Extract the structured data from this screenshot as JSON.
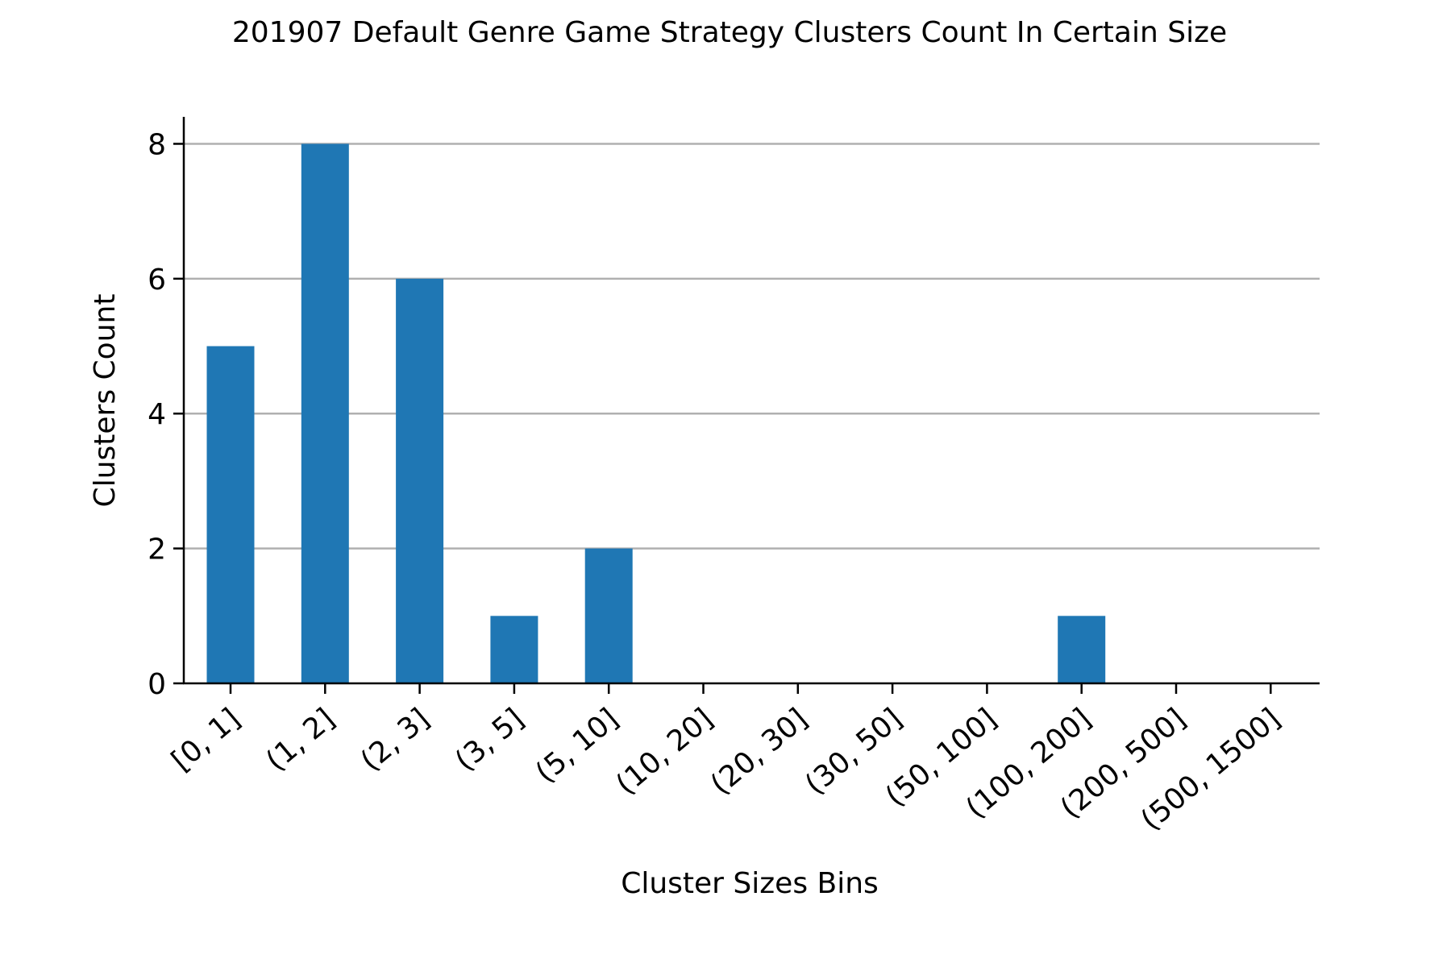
{
  "chart_data": {
    "type": "bar",
    "title": "201907 Default Genre Game Strategy Clusters Count In Certain Size",
    "xlabel": "Cluster Sizes Bins",
    "ylabel": "Clusters Count",
    "categories": [
      "[0, 1]",
      "(1, 2]",
      "(2, 3]",
      "(3, 5]",
      "(5, 10]",
      "(10, 20]",
      "(20, 30]",
      "(30, 50]",
      "(50, 100]",
      "(100, 200]",
      "(200, 500]",
      "(500, 1500]"
    ],
    "values": [
      5,
      8,
      6,
      1,
      2,
      0,
      0,
      0,
      0,
      1,
      0,
      0
    ],
    "ylim": [
      0,
      8.4
    ],
    "yticks": [
      0,
      2,
      4,
      6,
      8
    ],
    "grid": "y",
    "colors": {
      "bar": "#1f77b4",
      "grid": "#b0b0b0",
      "axis": "#000000"
    }
  }
}
